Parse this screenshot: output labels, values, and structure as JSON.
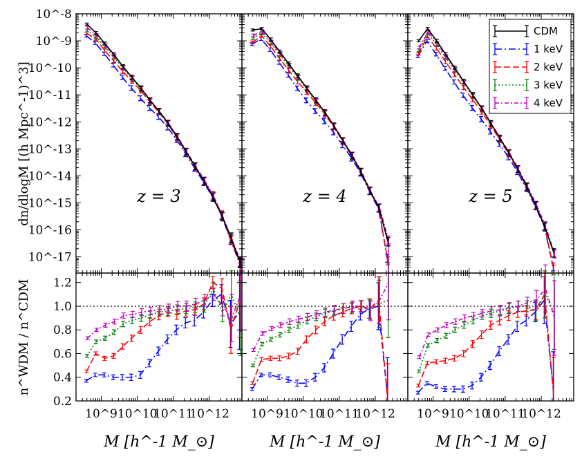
{
  "chart_data": {
    "type": "line",
    "title": "",
    "xlabel": "M [h^-1 M_⊙]",
    "ylabel_top": "dn/dlogM [(h Mpc^-1)^3]",
    "ylabel_bottom": "n^WDM / n^CDM",
    "x_log_range": [
      8.3,
      12.9
    ],
    "y_top_log_range": [
      -17.6,
      -8
    ],
    "y_bottom_range": [
      0.2,
      1.28
    ],
    "x_tick_labels": [
      "10^9",
      "10^10",
      "10^11",
      "10^12"
    ],
    "x_tick_exponents": [
      9,
      10,
      11,
      12
    ],
    "y_top_tick_labels": [
      "10^-17",
      "10^-16",
      "10^-15",
      "10^-14",
      "10^-13",
      "10^-12",
      "10^-11",
      "10^-10",
      "10^-9",
      "10^-8"
    ],
    "y_top_tick_exponents": [
      -17,
      -16,
      -15,
      -14,
      -13,
      -12,
      -11,
      -10,
      -9,
      -8
    ],
    "y_bottom_ticks": [
      "0.2",
      "0.4",
      "0.6",
      "0.8",
      "1.0",
      "1.2"
    ],
    "legend_position": "top-right",
    "legend": [
      {
        "label": "CDM",
        "color": "#000000"
      },
      {
        "label": "1 keV",
        "color": "#0000ff"
      },
      {
        "label": "2 keV",
        "color": "#ff0000"
      },
      {
        "label": "3 keV",
        "color": "#008000"
      },
      {
        "label": "4 keV",
        "color": "#bf00bf"
      }
    ],
    "panels": [
      {
        "redshift": "z = 3",
        "z_var": "z",
        "z_value": "3",
        "logM": [
          8.6,
          8.85,
          9.1,
          9.35,
          9.6,
          9.85,
          10.1,
          10.35,
          10.6,
          10.85,
          11.1,
          11.35,
          11.6,
          11.85,
          12.1,
          12.35,
          12.6,
          12.85
        ],
        "cdm_logn": [
          -8.38,
          -8.7,
          -9.1,
          -9.5,
          -9.95,
          -10.35,
          -10.75,
          -11.2,
          -11.6,
          -12.05,
          -12.55,
          -13.1,
          -13.65,
          -14.2,
          -14.8,
          -15.5,
          -16.3,
          -17.2
        ],
        "ratio": {
          "1 keV": [
            0.37,
            0.42,
            0.42,
            0.4,
            0.4,
            0.4,
            0.42,
            0.52,
            0.62,
            0.72,
            0.8,
            0.86,
            0.88,
            0.95,
            1.05,
            1.1,
            0.85,
            0.95
          ],
          "2 keV": [
            0.45,
            0.6,
            0.56,
            0.58,
            0.66,
            0.73,
            0.8,
            0.87,
            0.92,
            0.95,
            0.93,
            0.96,
            0.97,
            1.02,
            1.2,
            1.15,
            0.8,
            1.05
          ],
          "3 keV": [
            0.58,
            0.7,
            0.73,
            0.78,
            0.85,
            0.88,
            0.9,
            0.93,
            0.95,
            0.96,
            0.97,
            0.98,
            0.99,
            1.0,
            1.15,
            0.95,
            1.1,
            0.9
          ],
          "4 keV": [
            0.73,
            0.8,
            0.84,
            0.87,
            0.92,
            0.93,
            0.95,
            0.96,
            0.97,
            0.98,
            1.0,
            1.0,
            1.02,
            1.05,
            1.1,
            1.0,
            0.9,
            1.1
          ]
        }
      },
      {
        "redshift": "z = 4",
        "z_var": "z",
        "z_value": "4",
        "logM": [
          8.6,
          8.85,
          9.1,
          9.35,
          9.6,
          9.85,
          10.1,
          10.35,
          10.6,
          10.85,
          11.1,
          11.35,
          11.6,
          11.85,
          12.1,
          12.35
        ],
        "cdm_logn": [
          -8.6,
          -8.55,
          -8.95,
          -9.4,
          -9.85,
          -10.3,
          -10.75,
          -11.2,
          -11.65,
          -12.15,
          -12.7,
          -13.25,
          -13.85,
          -14.55,
          -15.2,
          -16.45
        ],
        "ratio": {
          "1 keV": [
            0.3,
            0.42,
            0.42,
            0.4,
            0.38,
            0.35,
            0.35,
            0.4,
            0.48,
            0.6,
            0.72,
            0.83,
            0.93,
            0.98,
            1.0,
            0.25
          ],
          "2 keV": [
            0.35,
            0.55,
            0.56,
            0.56,
            0.58,
            0.62,
            0.72,
            0.8,
            0.87,
            0.92,
            0.95,
            0.98,
            1.0,
            0.98,
            1.05,
            0.2
          ],
          "3 keV": [
            0.5,
            0.68,
            0.72,
            0.76,
            0.8,
            0.84,
            0.88,
            0.91,
            0.94,
            0.96,
            0.98,
            0.99,
            1.0,
            0.97,
            1.02,
            1.05
          ],
          "4 keV": [
            0.63,
            0.77,
            0.81,
            0.84,
            0.87,
            0.89,
            0.91,
            0.93,
            0.95,
            0.97,
            0.98,
            1.0,
            1.0,
            0.96,
            1.05,
            1.2
          ]
        }
      },
      {
        "redshift": "z = 5",
        "z_var": "z",
        "z_value": "5",
        "logM": [
          8.6,
          8.85,
          9.1,
          9.35,
          9.6,
          9.85,
          10.1,
          10.35,
          10.6,
          10.85,
          11.1,
          11.35,
          11.6,
          11.85,
          12.1,
          12.35
        ],
        "cdm_logn": [
          -9.0,
          -8.55,
          -9.0,
          -9.5,
          -10.0,
          -10.5,
          -11.0,
          -11.5,
          -12.05,
          -12.6,
          -13.15,
          -13.75,
          -14.4,
          -15.1,
          -15.9,
          -16.85
        ],
        "ratio": {
          "1 keV": [
            0.27,
            0.35,
            0.32,
            0.3,
            0.3,
            0.3,
            0.33,
            0.4,
            0.5,
            0.62,
            0.72,
            0.83,
            0.88,
            0.95,
            1.05,
            0.3
          ],
          "2 keV": [
            0.33,
            0.52,
            0.53,
            0.54,
            0.56,
            0.6,
            0.68,
            0.76,
            0.84,
            0.88,
            0.92,
            0.95,
            0.96,
            0.97,
            1.1,
            0.25
          ],
          "3 keV": [
            0.45,
            0.67,
            0.71,
            0.75,
            0.8,
            0.84,
            0.88,
            0.92,
            0.94,
            0.96,
            0.98,
            1.0,
            1.0,
            0.96,
            1.1,
            0.95
          ],
          "4 keV": [
            0.57,
            0.76,
            0.8,
            0.84,
            0.87,
            0.9,
            0.92,
            0.94,
            0.96,
            0.97,
            0.99,
            1.0,
            1.03,
            1.05,
            1.15,
            0.9
          ]
        }
      }
    ]
  }
}
